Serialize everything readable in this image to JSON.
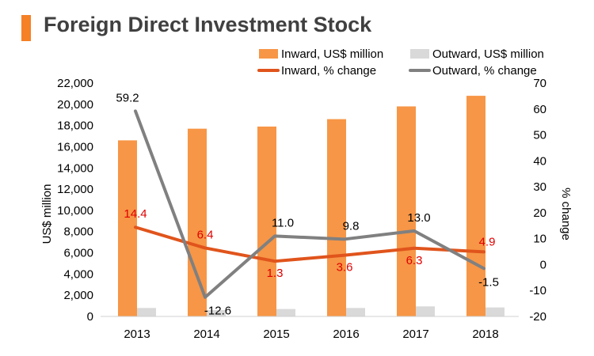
{
  "chart_data": {
    "type": "bar",
    "title": "Foreign Direct Investment Stock",
    "colors": {
      "title_bar": "#F58025",
      "inward_bar": "#F79646",
      "outward_bar": "#D9D9D9",
      "inward_line": "#E0541C",
      "outward_line": "#808080",
      "inward_label": "#E00000",
      "outward_label": "#000000"
    },
    "categories": [
      "2013",
      "2014",
      "2015",
      "2016",
      "2017",
      "2018"
    ],
    "ylabel": "US$ million",
    "y2label": "% change",
    "ylim": [
      0,
      22000
    ],
    "yticks": [
      "0",
      "2,000",
      "4,000",
      "6,000",
      "8,000",
      "10,000",
      "12,000",
      "14,000",
      "16,000",
      "18,000",
      "20,000",
      "22,000"
    ],
    "y2lim": [
      -20,
      70
    ],
    "y2ticks": [
      "-20",
      "-10",
      "0",
      "10",
      "20",
      "30",
      "40",
      "50",
      "60",
      "70"
    ],
    "legend_position": "top-right",
    "series": [
      {
        "name": "Inward, US$ million",
        "kind": "bar",
        "axis": "left",
        "values": [
          16600,
          17700,
          17900,
          18600,
          19800,
          20800
        ]
      },
      {
        "name": "Outward, US$ million",
        "kind": "bar",
        "axis": "left",
        "values": [
          800,
          600,
          700,
          800,
          950,
          850
        ]
      },
      {
        "name": "Inward, % change",
        "kind": "line",
        "axis": "right",
        "values": [
          14.4,
          6.4,
          1.3,
          3.6,
          6.3,
          4.9
        ],
        "labels": [
          "14.4",
          "6.4",
          "1.3",
          "3.6",
          "6.3",
          "4.9"
        ]
      },
      {
        "name": "Outward, % change",
        "kind": "line",
        "axis": "right",
        "values": [
          59.2,
          -12.6,
          11.0,
          9.8,
          13.0,
          -1.5
        ],
        "labels": [
          "59.2",
          "-12.6",
          "11.0",
          "9.8",
          "13.0",
          "-1.5"
        ]
      }
    ]
  }
}
